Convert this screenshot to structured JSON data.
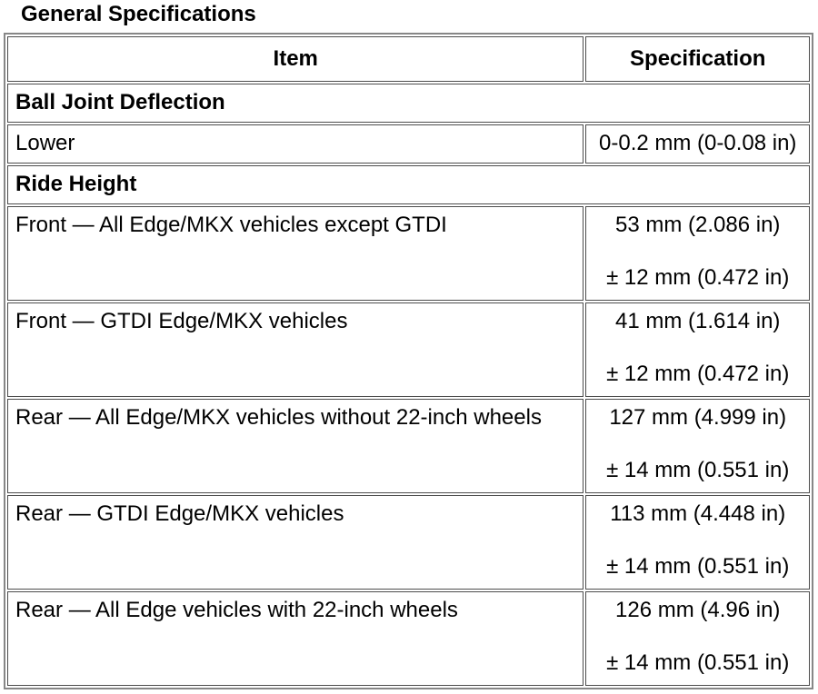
{
  "page": {
    "title": "General Specifications"
  },
  "table": {
    "header": {
      "item": "Item",
      "specification": "Specification"
    },
    "rows": [
      {
        "type": "section",
        "item": "Ball Joint Deflection"
      },
      {
        "type": "data",
        "item": "Lower",
        "spec": "0-0.2 mm (0-0.08 in)"
      },
      {
        "type": "section",
        "item": "Ride Height"
      },
      {
        "type": "data",
        "item": "Front — All Edge/MKX vehicles except GTDI",
        "spec": "53 mm (2.086 in)\n\n± 12 mm (0.472 in)"
      },
      {
        "type": "data",
        "item": "Front — GTDI Edge/MKX vehicles",
        "spec": "41 mm (1.614 in)\n\n± 12 mm (0.472 in)"
      },
      {
        "type": "data",
        "item": "Rear — All Edge/MKX vehicles without 22-inch wheels",
        "spec": "127 mm (4.999 in)\n\n± 14 mm (0.551 in)"
      },
      {
        "type": "data",
        "item": "Rear — GTDI Edge/MKX vehicles",
        "spec": "113 mm (4.448 in)\n\n± 14 mm (0.551 in)"
      },
      {
        "type": "data",
        "item": "Rear — All Edge vehicles with 22-inch wheels",
        "spec": "126 mm (4.96 in)\n\n± 14 mm (0.551 in)"
      }
    ]
  }
}
